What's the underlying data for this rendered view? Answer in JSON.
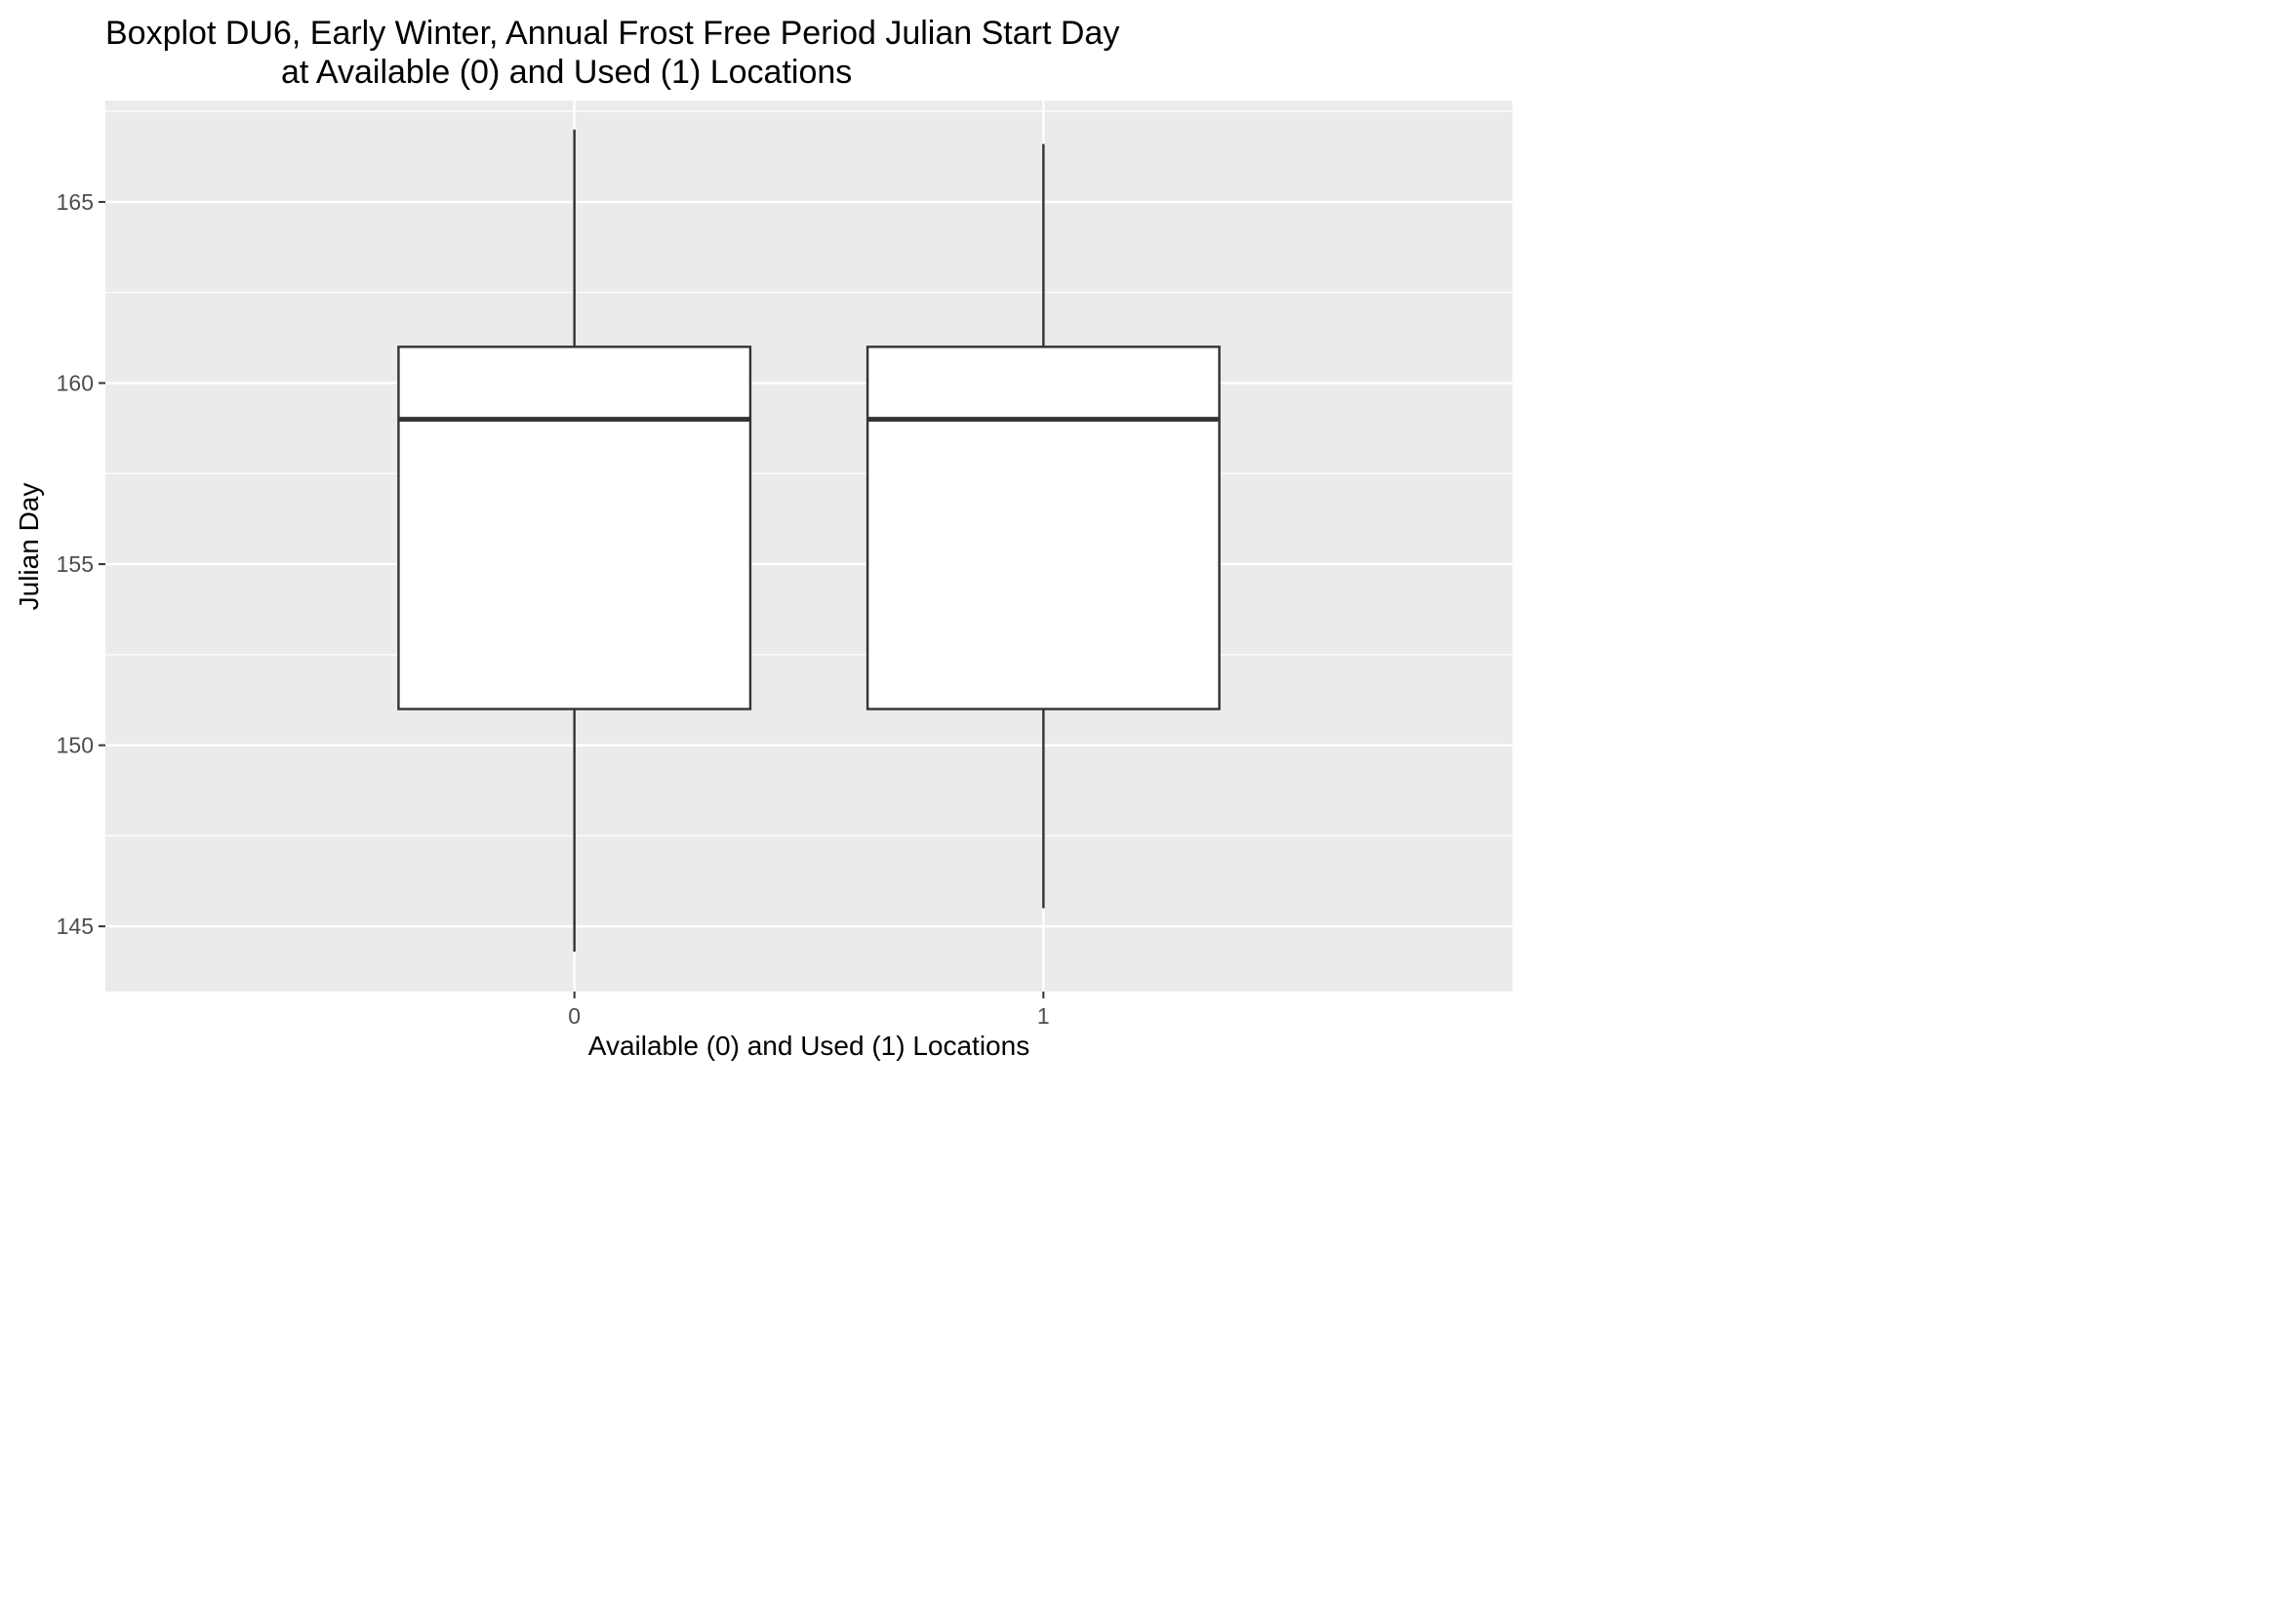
{
  "chart_data": {
    "type": "box",
    "title": "Boxplot DU6, Early Winter, Annual Frost Free Period Julian Start Day",
    "title_line2": "at Available (0) and Used (1) Locations",
    "xlabel": "Available (0) and Used (1) Locations",
    "ylabel": "Julian Day",
    "categories": [
      "0",
      "1"
    ],
    "yticks": [
      145,
      150,
      155,
      160,
      165
    ],
    "ylim": [
      143.2,
      167.8
    ],
    "grid": true,
    "boxes": [
      {
        "category": "0",
        "whisker_low": 144.3,
        "q1": 151,
        "median": 159,
        "q3": 161,
        "whisker_high": 167
      },
      {
        "category": "1",
        "whisker_low": 145.5,
        "q1": 151,
        "median": 159,
        "q3": 161,
        "whisker_high": 166.6
      }
    ],
    "colors": {
      "panel": "#ebebeb",
      "grid": "#ffffff",
      "box_fill": "#ffffff",
      "box_line": "#333333"
    }
  }
}
